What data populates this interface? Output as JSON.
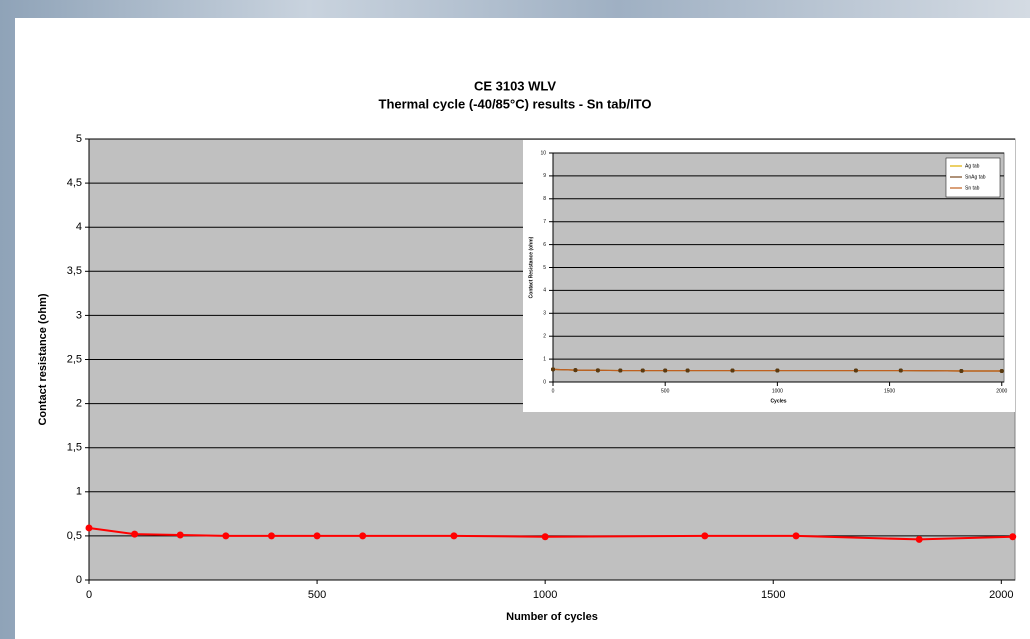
{
  "chart_data": [
    {
      "type": "line",
      "title": "CE 3103 WLV",
      "subtitle": "Thermal cycle (-40/85°C) results - Sn tab/ITO",
      "xlabel": "Number of cycles",
      "ylabel": "Contact resistance (ohm)",
      "x": [
        0,
        100,
        200,
        300,
        400,
        500,
        600,
        800,
        1000,
        1350,
        1550,
        1820,
        2025
      ],
      "values": [
        0.59,
        0.52,
        0.51,
        0.5,
        0.5,
        0.5,
        0.5,
        0.5,
        0.49,
        0.5,
        0.5,
        0.46,
        0.49
      ],
      "color": "#ff0000",
      "xlim": [
        0,
        2030
      ],
      "xticks": [
        0,
        500,
        1000,
        1500,
        2000
      ],
      "ylim": [
        0,
        5
      ],
      "yticks": [
        0,
        {
          "value": 0.5,
          "label": "0,5"
        },
        1,
        {
          "value": 1.5,
          "label": "1,5"
        },
        2,
        {
          "value": 2.5,
          "label": "2,5"
        },
        3,
        {
          "value": 3.5,
          "label": "3,5"
        },
        4,
        {
          "value": 4.5,
          "label": "4,5"
        },
        5
      ],
      "grid": true
    },
    {
      "type": "line",
      "xlabel": "Cycles",
      "ylabel": "Contact Resistance (ohm)",
      "x": [
        0,
        100,
        200,
        300,
        400,
        500,
        600,
        800,
        1000,
        1350,
        1550,
        1820,
        2000
      ],
      "series": [
        {
          "name": "Ag tab",
          "color": "#e0b000",
          "values": [
            0.55,
            0.52,
            0.51,
            0.5,
            0.5,
            0.5,
            0.5,
            0.5,
            0.5,
            0.5,
            0.5,
            0.48,
            0.48
          ]
        },
        {
          "name": "SnAg tab",
          "color": "#7a4a20",
          "values": [
            0.55,
            0.52,
            0.51,
            0.5,
            0.5,
            0.5,
            0.5,
            0.5,
            0.5,
            0.5,
            0.5,
            0.48,
            0.48
          ]
        },
        {
          "name": "Sn tab",
          "color": "#c06020",
          "values": [
            0.55,
            0.52,
            0.51,
            0.5,
            0.5,
            0.5,
            0.5,
            0.5,
            0.5,
            0.5,
            0.5,
            0.48,
            0.48
          ]
        }
      ],
      "xlim": [
        0,
        2010
      ],
      "xticks": [
        0,
        500,
        1000,
        1500,
        2000
      ],
      "ylim": [
        0,
        10
      ],
      "yticks": [
        0,
        1,
        2,
        3,
        4,
        5,
        6,
        7,
        8,
        9,
        10
      ],
      "grid": true,
      "legend": "top-right"
    }
  ]
}
